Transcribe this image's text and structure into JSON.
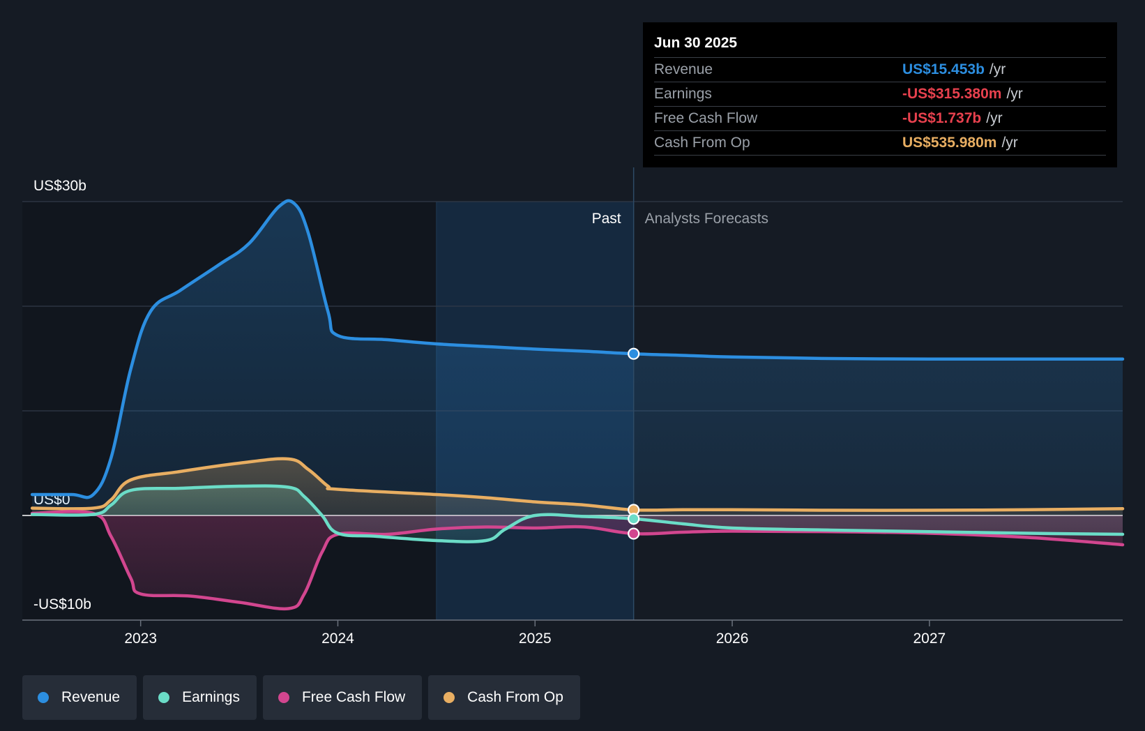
{
  "chart_data": {
    "type": "area",
    "title": "",
    "xlabel": "",
    "ylabel": "",
    "x_range": [
      2022.4,
      2027.98
    ],
    "ylim": [
      -10,
      30
    ],
    "y_tick_labels": [
      {
        "value": 30,
        "label": "US$30b"
      },
      {
        "value": 0,
        "label": "US$0"
      },
      {
        "value": -10,
        "label": "-US$10b"
      }
    ],
    "gridlines": [
      30,
      20,
      10,
      0,
      -10
    ],
    "x_ticks": [
      {
        "value": 2023,
        "label": "2023"
      },
      {
        "value": 2024,
        "label": "2024"
      },
      {
        "value": 2025,
        "label": "2025"
      },
      {
        "value": 2026,
        "label": "2026"
      },
      {
        "value": 2027,
        "label": "2027"
      }
    ],
    "divider_x": 2025.5,
    "highlight_start_x": 2024.5,
    "past_label": "Past",
    "forecast_label": "Analysts Forecasts",
    "series": [
      {
        "name": "Revenue",
        "color": "#2c8ee0",
        "fill": true,
        "points": [
          [
            2022.45,
            2.0
          ],
          [
            2022.65,
            2.0
          ],
          [
            2022.76,
            2.0
          ],
          [
            2022.85,
            5.5
          ],
          [
            2022.95,
            14.0
          ],
          [
            2023.05,
            19.5
          ],
          [
            2023.2,
            21.5
          ],
          [
            2023.4,
            24.0
          ],
          [
            2023.55,
            26.0
          ],
          [
            2023.7,
            29.5
          ],
          [
            2023.78,
            29.8
          ],
          [
            2023.85,
            27.0
          ],
          [
            2023.95,
            19.5
          ],
          [
            2024.0,
            17.2
          ],
          [
            2024.25,
            16.8
          ],
          [
            2024.5,
            16.4
          ],
          [
            2024.8,
            16.1
          ],
          [
            2025.0,
            15.9
          ],
          [
            2025.25,
            15.7
          ],
          [
            2025.5,
            15.453
          ],
          [
            2025.75,
            15.3
          ],
          [
            2026.0,
            15.15
          ],
          [
            2026.5,
            15.0
          ],
          [
            2027.0,
            14.95
          ],
          [
            2027.5,
            14.95
          ],
          [
            2027.98,
            14.95
          ]
        ]
      },
      {
        "name": "Earnings",
        "color": "#6bdcc7",
        "fill": true,
        "points": [
          [
            2022.45,
            0.1
          ],
          [
            2022.76,
            0.1
          ],
          [
            2022.85,
            1.0
          ],
          [
            2022.95,
            2.4
          ],
          [
            2023.2,
            2.6
          ],
          [
            2023.5,
            2.8
          ],
          [
            2023.75,
            2.7
          ],
          [
            2023.83,
            1.8
          ],
          [
            2023.92,
            0.0
          ],
          [
            2024.0,
            -1.7
          ],
          [
            2024.2,
            -2.0
          ],
          [
            2024.5,
            -2.4
          ],
          [
            2024.75,
            -2.4
          ],
          [
            2024.85,
            -1.3
          ],
          [
            2025.0,
            0.0
          ],
          [
            2025.25,
            -0.1
          ],
          [
            2025.5,
            -0.31538
          ],
          [
            2025.75,
            -0.8
          ],
          [
            2026.0,
            -1.2
          ],
          [
            2026.5,
            -1.4
          ],
          [
            2027.0,
            -1.55
          ],
          [
            2027.5,
            -1.7
          ],
          [
            2027.98,
            -1.8
          ]
        ]
      },
      {
        "name": "Free Cash Flow",
        "color": "#d2468f",
        "fill": true,
        "points": [
          [
            2022.45,
            0.2
          ],
          [
            2022.76,
            0.2
          ],
          [
            2022.85,
            -2.0
          ],
          [
            2022.95,
            -6.0
          ],
          [
            2023.0,
            -7.5
          ],
          [
            2023.25,
            -7.7
          ],
          [
            2023.5,
            -8.3
          ],
          [
            2023.75,
            -8.9
          ],
          [
            2023.83,
            -7.5
          ],
          [
            2023.92,
            -3.5
          ],
          [
            2024.0,
            -1.8
          ],
          [
            2024.25,
            -1.8
          ],
          [
            2024.5,
            -1.3
          ],
          [
            2024.75,
            -1.1
          ],
          [
            2025.0,
            -1.2
          ],
          [
            2025.25,
            -1.1
          ],
          [
            2025.5,
            -1.737
          ],
          [
            2025.75,
            -1.6
          ],
          [
            2026.0,
            -1.5
          ],
          [
            2026.5,
            -1.55
          ],
          [
            2027.0,
            -1.7
          ],
          [
            2027.5,
            -2.1
          ],
          [
            2027.98,
            -2.8
          ]
        ]
      },
      {
        "name": "Cash From Op",
        "color": "#e8ae62",
        "fill": true,
        "points": [
          [
            2022.45,
            0.7
          ],
          [
            2022.76,
            0.7
          ],
          [
            2022.85,
            1.5
          ],
          [
            2022.95,
            3.4
          ],
          [
            2023.2,
            4.2
          ],
          [
            2023.5,
            5.0
          ],
          [
            2023.75,
            5.4
          ],
          [
            2023.85,
            4.4
          ],
          [
            2023.95,
            2.8
          ],
          [
            2024.0,
            2.5
          ],
          [
            2024.5,
            2.0
          ],
          [
            2024.75,
            1.7
          ],
          [
            2025.0,
            1.3
          ],
          [
            2025.25,
            1.0
          ],
          [
            2025.5,
            0.53598
          ],
          [
            2025.75,
            0.55
          ],
          [
            2026.0,
            0.55
          ],
          [
            2026.5,
            0.5
          ],
          [
            2027.0,
            0.5
          ],
          [
            2027.5,
            0.55
          ],
          [
            2027.98,
            0.65
          ]
        ]
      }
    ],
    "highlight_points": [
      {
        "series": "Revenue",
        "x": 2025.5,
        "y": 15.453
      },
      {
        "series": "Cash From Op",
        "x": 2025.5,
        "y": 0.53598
      },
      {
        "series": "Earnings",
        "x": 2025.5,
        "y": -0.31538
      },
      {
        "series": "Free Cash Flow",
        "x": 2025.5,
        "y": -1.737
      }
    ]
  },
  "tooltip": {
    "date": "Jun 30 2025",
    "unit": "/yr",
    "rows": [
      {
        "label": "Revenue",
        "value": "US$15.453b",
        "color": "#2c8ee0"
      },
      {
        "label": "Earnings",
        "value": "-US$315.380m",
        "color": "#e8414e"
      },
      {
        "label": "Free Cash Flow",
        "value": "-US$1.737b",
        "color": "#e8414e"
      },
      {
        "label": "Cash From Op",
        "value": "US$535.980m",
        "color": "#e8ae62"
      }
    ]
  },
  "legend": [
    {
      "label": "Revenue",
      "color": "#2c8ee0"
    },
    {
      "label": "Earnings",
      "color": "#6bdcc7"
    },
    {
      "label": "Free Cash Flow",
      "color": "#d2468f"
    },
    {
      "label": "Cash From Op",
      "color": "#e8ae62"
    }
  ]
}
